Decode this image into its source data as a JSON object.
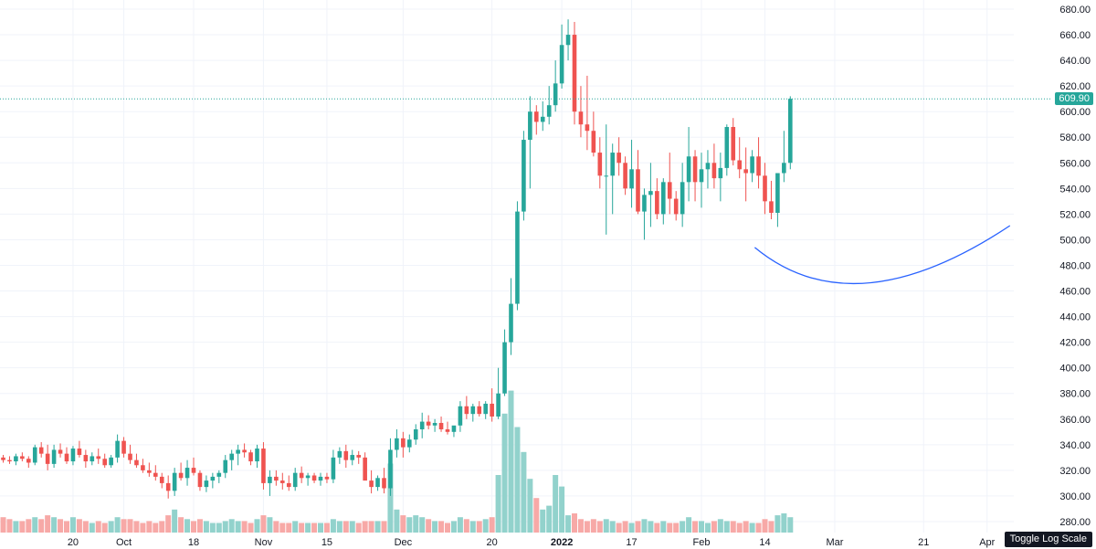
{
  "chart_data": {
    "type": "candlestick",
    "y_axis": {
      "min": 270,
      "max": 680,
      "position": "right",
      "ticks": [
        280,
        300,
        320,
        340,
        360,
        380,
        400,
        420,
        440,
        460,
        480,
        500,
        520,
        540,
        560,
        580,
        600,
        620,
        640,
        660,
        680
      ]
    },
    "x_ticks": [
      {
        "label": "20",
        "index": 11
      },
      {
        "label": "Oct",
        "index": 19
      },
      {
        "label": "18",
        "index": 30
      },
      {
        "label": "Nov",
        "index": 41
      },
      {
        "label": "15",
        "index": 51
      },
      {
        "label": "Dec",
        "index": 63
      },
      {
        "label": "20",
        "index": 77
      },
      {
        "label": "2022",
        "index": 88,
        "bold": true
      },
      {
        "label": "17",
        "index": 99
      },
      {
        "label": "Feb",
        "index": 110
      },
      {
        "label": "14",
        "index": 120
      },
      {
        "label": "Mar",
        "index": 131
      },
      {
        "label": "21",
        "index": 145
      },
      {
        "label": "Apr",
        "index": 155
      }
    ],
    "last_price": "609.90",
    "last_price_value": 609.9,
    "colors": {
      "up": "#26a69a",
      "down": "#ef5350",
      "vol_up": "#92d2cc",
      "vol_down": "#f7a9a7",
      "price_line": "#26a69a",
      "curve": "#2962ff"
    },
    "candles": [
      [
        330,
        332,
        326,
        328,
        8
      ],
      [
        328,
        331,
        325,
        327,
        7
      ],
      [
        327,
        333,
        324,
        331,
        6
      ],
      [
        331,
        334,
        327,
        329,
        6
      ],
      [
        329,
        331,
        322,
        326,
        7
      ],
      [
        326,
        340,
        324,
        338,
        8
      ],
      [
        338,
        342,
        330,
        333,
        7
      ],
      [
        333,
        340,
        320,
        325,
        9
      ],
      [
        325,
        340,
        322,
        336,
        8
      ],
      [
        336,
        341,
        330,
        333,
        7
      ],
      [
        333,
        338,
        325,
        327,
        6
      ],
      [
        327,
        339,
        324,
        337,
        8
      ],
      [
        337,
        343,
        330,
        332,
        7
      ],
      [
        332,
        336,
        322,
        327,
        6
      ],
      [
        327,
        334,
        324,
        331,
        5
      ],
      [
        331,
        337,
        325,
        329,
        6
      ],
      [
        329,
        333,
        322,
        324,
        5
      ],
      [
        324,
        332,
        322,
        330,
        6
      ],
      [
        330,
        348,
        326,
        343,
        8
      ],
      [
        343,
        346,
        330,
        333,
        7
      ],
      [
        333,
        340,
        325,
        328,
        7
      ],
      [
        328,
        333,
        322,
        324,
        6
      ],
      [
        324,
        329,
        318,
        320,
        5
      ],
      [
        320,
        326,
        315,
        318,
        6
      ],
      [
        318,
        324,
        312,
        315,
        5
      ],
      [
        315,
        318,
        306,
        310,
        6
      ],
      [
        310,
        316,
        298,
        304,
        9
      ],
      [
        304,
        322,
        300,
        318,
        12
      ],
      [
        318,
        326,
        312,
        314,
        8
      ],
      [
        314,
        328,
        308,
        322,
        7
      ],
      [
        322,
        330,
        316,
        318,
        6
      ],
      [
        318,
        320,
        304,
        307,
        7
      ],
      [
        307,
        316,
        303,
        312,
        6
      ],
      [
        312,
        318,
        306,
        315,
        5
      ],
      [
        315,
        320,
        310,
        318,
        5
      ],
      [
        318,
        332,
        314,
        328,
        6
      ],
      [
        328,
        336,
        320,
        333,
        7
      ],
      [
        333,
        340,
        324,
        336,
        6
      ],
      [
        336,
        341,
        330,
        334,
        6
      ],
      [
        334,
        336,
        324,
        327,
        5
      ],
      [
        327,
        340,
        322,
        337,
        7
      ],
      [
        337,
        342,
        305,
        310,
        9
      ],
      [
        310,
        320,
        300,
        315,
        8
      ],
      [
        315,
        320,
        308,
        312,
        6
      ],
      [
        312,
        318,
        305,
        310,
        5
      ],
      [
        310,
        316,
        304,
        307,
        5
      ],
      [
        307,
        322,
        304,
        318,
        6
      ],
      [
        318,
        323,
        310,
        314,
        5
      ],
      [
        314,
        318,
        308,
        316,
        5
      ],
      [
        316,
        318,
        310,
        312,
        5
      ],
      [
        312,
        318,
        308,
        315,
        5
      ],
      [
        315,
        318,
        310,
        313,
        5
      ],
      [
        313,
        336,
        310,
        330,
        7
      ],
      [
        330,
        338,
        325,
        335,
        6
      ],
      [
        335,
        340,
        322,
        328,
        6
      ],
      [
        328,
        336,
        324,
        332,
        6
      ],
      [
        332,
        335,
        325,
        330,
        5
      ],
      [
        330,
        334,
        315,
        312,
        6
      ],
      [
        312,
        320,
        302,
        307,
        6
      ],
      [
        307,
        316,
        304,
        314,
        6
      ],
      [
        314,
        322,
        302,
        306,
        6
      ],
      [
        306,
        345,
        300,
        336,
        36
      ],
      [
        336,
        352,
        330,
        345,
        12
      ],
      [
        345,
        350,
        330,
        338,
        9
      ],
      [
        338,
        348,
        334,
        344,
        8
      ],
      [
        344,
        356,
        340,
        352,
        9
      ],
      [
        352,
        365,
        345,
        358,
        8
      ],
      [
        358,
        363,
        352,
        355,
        7
      ],
      [
        355,
        360,
        350,
        357,
        6
      ],
      [
        357,
        362,
        350,
        352,
        6
      ],
      [
        352,
        358,
        348,
        350,
        5
      ],
      [
        350,
        354,
        346,
        355,
        6
      ],
      [
        355,
        374,
        350,
        370,
        8
      ],
      [
        370,
        378,
        360,
        364,
        7
      ],
      [
        364,
        372,
        358,
        370,
        6
      ],
      [
        370,
        374,
        362,
        364,
        6
      ],
      [
        364,
        374,
        360,
        372,
        7
      ],
      [
        372,
        384,
        358,
        362,
        8
      ],
      [
        362,
        400,
        360,
        380,
        30
      ],
      [
        380,
        430,
        378,
        420,
        62
      ],
      [
        420,
        470,
        410,
        450,
        74
      ],
      [
        450,
        530,
        445,
        522,
        55
      ],
      [
        522,
        585,
        515,
        578,
        42
      ],
      [
        578,
        612,
        540,
        600,
        28
      ],
      [
        600,
        605,
        582,
        592,
        18
      ],
      [
        592,
        608,
        585,
        596,
        12
      ],
      [
        596,
        620,
        590,
        605,
        14
      ],
      [
        605,
        640,
        600,
        622,
        30
      ],
      [
        622,
        668,
        618,
        652,
        24
      ],
      [
        652,
        672,
        640,
        660,
        9
      ],
      [
        660,
        670,
        590,
        600,
        10
      ],
      [
        600,
        620,
        580,
        590,
        7
      ],
      [
        590,
        628,
        570,
        585,
        6
      ],
      [
        585,
        600,
        565,
        568,
        7
      ],
      [
        568,
        580,
        540,
        550,
        6
      ],
      [
        550,
        590,
        504,
        550,
        7
      ],
      [
        550,
        575,
        520,
        568,
        6
      ],
      [
        568,
        580,
        550,
        560,
        5
      ],
      [
        560,
        565,
        535,
        540,
        6
      ],
      [
        540,
        578,
        525,
        555,
        5
      ],
      [
        555,
        570,
        520,
        522,
        6
      ],
      [
        522,
        540,
        500,
        535,
        7
      ],
      [
        535,
        560,
        510,
        538,
        6
      ],
      [
        538,
        548,
        516,
        520,
        5
      ],
      [
        520,
        548,
        512,
        545,
        6
      ],
      [
        545,
        568,
        520,
        532,
        5
      ],
      [
        532,
        538,
        515,
        520,
        5
      ],
      [
        520,
        560,
        510,
        545,
        6
      ],
      [
        545,
        588,
        530,
        565,
        8
      ],
      [
        565,
        570,
        530,
        545,
        6
      ],
      [
        545,
        568,
        525,
        555,
        6
      ],
      [
        555,
        570,
        540,
        560,
        5
      ],
      [
        560,
        575,
        540,
        548,
        6
      ],
      [
        548,
        568,
        530,
        556,
        7
      ],
      [
        556,
        590,
        550,
        588,
        6
      ],
      [
        588,
        595,
        558,
        562,
        6
      ],
      [
        562,
        580,
        548,
        555,
        5
      ],
      [
        555,
        572,
        530,
        552,
        6
      ],
      [
        552,
        570,
        545,
        565,
        5
      ],
      [
        565,
        580,
        540,
        550,
        5
      ],
      [
        550,
        560,
        520,
        530,
        7
      ],
      [
        530,
        546,
        516,
        521,
        6
      ],
      [
        521,
        550,
        510,
        552,
        9
      ],
      [
        552,
        585,
        545,
        560,
        10
      ],
      [
        560,
        612,
        555,
        610,
        8
      ]
    ]
  },
  "ui": {
    "toggle_log_scale_label": "Toggle Log Scale"
  }
}
